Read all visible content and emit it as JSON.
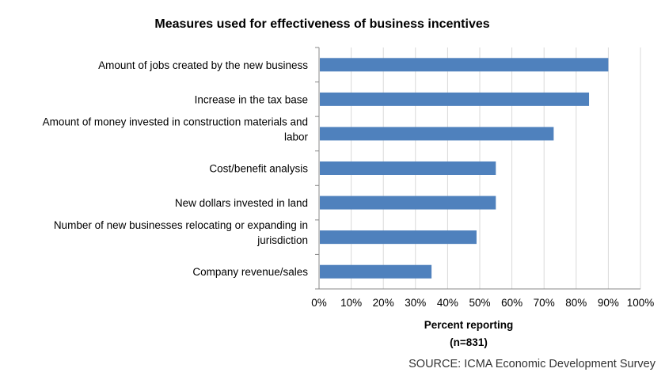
{
  "chart_data": {
    "type": "bar",
    "orientation": "horizontal",
    "title": "Measures used for effectiveness of business incentives",
    "categories": [
      [
        "Amount of jobs created by the new business"
      ],
      [
        "Increase in the tax base"
      ],
      [
        "Amount of money invested in construction materials and",
        "labor"
      ],
      [
        "Cost/benefit analysis"
      ],
      [
        "New dollars invested in land"
      ],
      [
        "Number of new businesses relocating or expanding in",
        "jurisdiction"
      ],
      [
        "Company revenue/sales"
      ]
    ],
    "values": [
      90,
      84,
      73,
      55,
      55,
      49,
      35
    ],
    "xlim": [
      0,
      100
    ],
    "xticks": [
      "0%",
      "10%",
      "20%",
      "30%",
      "40%",
      "50%",
      "60%",
      "70%",
      "80%",
      "90%",
      "100%"
    ],
    "xlabel": [
      "Percent reporting",
      "(n=831)"
    ],
    "grid": true,
    "bar_color": "#4f81bd"
  },
  "source": "SOURCE: ICMA Economic Development Survey"
}
